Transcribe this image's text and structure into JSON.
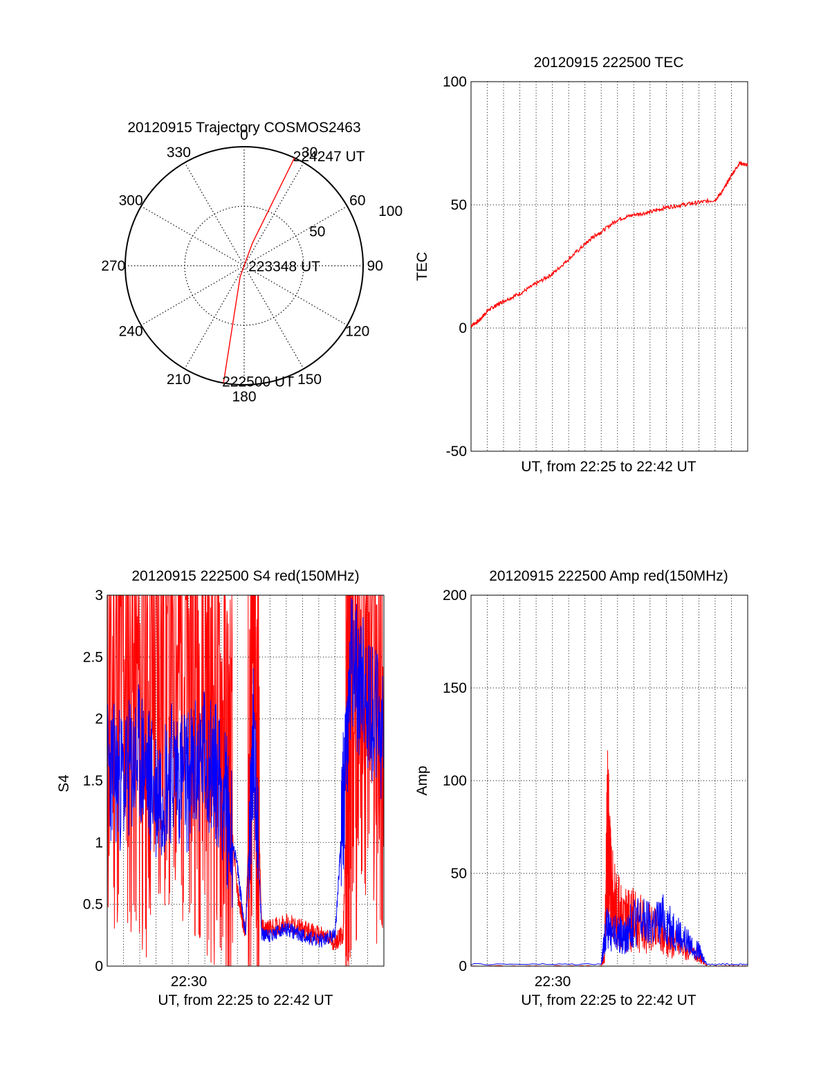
{
  "chart_data": [
    {
      "type": "polar",
      "title": "20120915 Trajectory COSMOS2463",
      "angle_ticks": [
        "0",
        "30",
        "60",
        "90",
        "120",
        "150",
        "180",
        "210",
        "240",
        "270",
        "300",
        "330"
      ],
      "radial_ticks": [
        "50",
        "100"
      ],
      "rlim": [
        0,
        100
      ],
      "grid": true,
      "colors": {
        "track": "#ff0000",
        "axes": "#000000",
        "grid": "#000000"
      },
      "series": [
        {
          "points": [
            {
              "az": 190,
              "r": 100
            },
            {
              "az": 200,
              "r": 10
            },
            {
              "az": 20,
              "r": 20
            },
            {
              "az": 25,
              "r": 100
            }
          ],
          "labels": [
            {
              "text": "222500 UT",
              "az": 190,
              "r": 100
            },
            {
              "text": "223348 UT",
              "az": 110,
              "r": 5
            },
            {
              "text": "224247 UT",
              "az": 25,
              "r": 100
            }
          ]
        }
      ]
    },
    {
      "type": "line",
      "title": "20120915 222500 TEC",
      "xlabel": "UT, from 22:25 to 22:42 UT",
      "ylabel": "TEC",
      "ylim": [
        -50,
        100
      ],
      "yticks": [
        "-50",
        "0",
        "50",
        "100"
      ],
      "xlim_minutes": [
        0,
        17
      ],
      "grid": true,
      "colors": {
        "line": "#ff0000"
      },
      "series": [
        {
          "name": "",
          "x_minutes": [
            0,
            0.5,
            1,
            1.5,
            2,
            3,
            4,
            5,
            6,
            7,
            7.5,
            8,
            9,
            10,
            11,
            12,
            13,
            14,
            15,
            15.5,
            16,
            16.5,
            17
          ],
          "values": [
            1,
            3,
            7,
            9,
            11,
            14,
            18,
            22,
            28,
            34,
            37,
            39,
            44,
            46,
            47,
            49,
            50,
            51,
            52,
            56,
            62,
            67,
            66
          ]
        }
      ]
    },
    {
      "type": "line",
      "title": "20120915 222500 S4 red(150MHz)",
      "xlabel": "UT, from 22:25 to 22:42 UT",
      "ylabel": "S4",
      "ylim": [
        0,
        3
      ],
      "yticks": [
        "0",
        "0.5",
        "1",
        "1.5",
        "2",
        "2.5",
        "3"
      ],
      "xticks": [
        "22:30"
      ],
      "xlim_minutes": [
        0,
        17
      ],
      "grid": true,
      "colors": {
        "red": "#ff0000",
        "blue": "#0000ff"
      },
      "series": [
        {
          "name": "",
          "x_minutes": [
            0,
            1,
            2,
            3,
            4,
            5,
            6,
            7,
            8,
            8.5,
            9,
            9.5,
            10,
            11,
            12,
            13,
            14,
            14.5,
            14.8,
            15,
            16,
            17
          ],
          "values": [
            2.2,
            2.5,
            2.1,
            2.4,
            2.6,
            2.5,
            2.3,
            2.0,
            0.6,
            0.25,
            2.6,
            0.3,
            0.3,
            0.35,
            0.3,
            0.25,
            0.2,
            0.25,
            1.8,
            2.3,
            2.5,
            2.0
          ]
        },
        {
          "name": "",
          "x_minutes": [
            0,
            1,
            2,
            3,
            4,
            5,
            6,
            7,
            8,
            8.5,
            9,
            9.5,
            10,
            11,
            12,
            13,
            14,
            14.5,
            15,
            16,
            17
          ],
          "values": [
            1.6,
            1.5,
            1.7,
            1.4,
            1.6,
            1.5,
            1.7,
            1.5,
            0.8,
            0.25,
            1.9,
            0.25,
            0.25,
            0.3,
            0.25,
            0.2,
            0.25,
            1.3,
            2.4,
            2.2,
            1.8
          ]
        }
      ]
    },
    {
      "type": "line",
      "title": "20120915 222500 Amp red(150MHz)",
      "xlabel": "UT, from 22:25 to 22:42 UT",
      "ylabel": "Amp",
      "ylim": [
        0,
        200
      ],
      "yticks": [
        "0",
        "50",
        "100",
        "150",
        "200"
      ],
      "xticks": [
        "22:30"
      ],
      "xlim_minutes": [
        0,
        17
      ],
      "grid": true,
      "colors": {
        "red": "#ff0000",
        "blue": "#0000ff"
      },
      "series": [
        {
          "name": "",
          "x_minutes": [
            0,
            8,
            8.2,
            8.4,
            8.6,
            9,
            9.5,
            10,
            11,
            12,
            13,
            14,
            14.5,
            17
          ],
          "values": [
            0,
            0,
            5,
            80,
            40,
            30,
            25,
            25,
            20,
            15,
            10,
            5,
            0,
            0
          ]
        },
        {
          "name": "",
          "x_minutes": [
            0,
            8,
            8.3,
            9,
            9.5,
            10,
            11,
            12,
            13,
            14,
            14.5,
            17
          ],
          "values": [
            1,
            1,
            20,
            18,
            15,
            25,
            22,
            25,
            15,
            8,
            1,
            1
          ]
        }
      ]
    }
  ]
}
